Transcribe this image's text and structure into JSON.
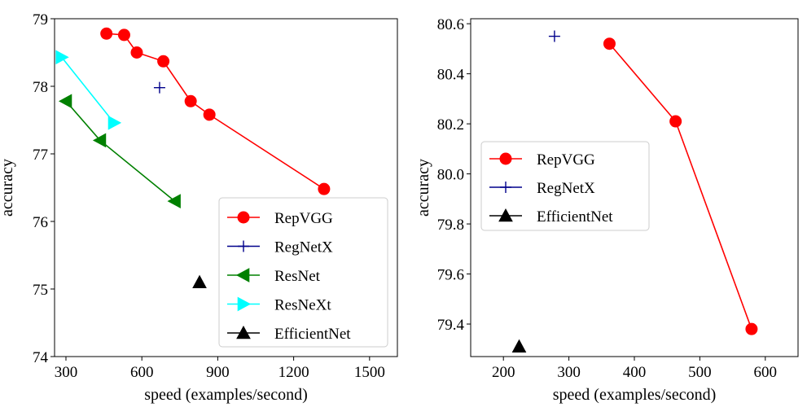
{
  "chart_data": [
    {
      "type": "line",
      "xlabel": "speed (examples/second)",
      "ylabel": "accuracy",
      "xlim": [
        255,
        1610
      ],
      "ylim": [
        74,
        79
      ],
      "xticks": [
        300,
        600,
        900,
        1200,
        1500
      ],
      "yticks": [
        74,
        75,
        76,
        77,
        78,
        79
      ],
      "legend_position": "lower-right",
      "series": [
        {
          "name": "RepVGG",
          "color": "#ff0000",
          "marker": "circle",
          "line": true,
          "x": [
            460,
            530,
            580,
            685,
            793,
            867,
            1320
          ],
          "y": [
            78.78,
            78.76,
            78.5,
            78.37,
            77.78,
            77.58,
            76.48
          ]
        },
        {
          "name": "RegNetX",
          "color": "#00008b",
          "marker": "plus",
          "line": true,
          "x": [
            670
          ],
          "y": [
            77.98
          ]
        },
        {
          "name": "ResNet",
          "color": "#008000",
          "marker": "triangle-left",
          "line": true,
          "x": [
            300,
            435,
            730
          ],
          "y": [
            77.78,
            77.2,
            76.3
          ]
        },
        {
          "name": "ResNeXt",
          "color": "#00ffff",
          "marker": "triangle-right",
          "line": true,
          "x": [
            283,
            490
          ],
          "y": [
            78.43,
            77.46
          ]
        },
        {
          "name": "EfficientNet",
          "color": "#000000",
          "marker": "triangle-up",
          "line": true,
          "x": [
            828
          ],
          "y": [
            75.1
          ]
        }
      ]
    },
    {
      "type": "line",
      "xlabel": "speed (examples/second)",
      "ylabel": "accuracy",
      "xlim": [
        150,
        650
      ],
      "ylim": [
        79.27,
        80.62
      ],
      "xticks": [
        200,
        300,
        400,
        500,
        600
      ],
      "yticks": [
        79.4,
        79.6,
        79.8,
        80.0,
        80.2,
        80.4,
        80.6
      ],
      "legend_position": "upper-left",
      "series": [
        {
          "name": "RepVGG",
          "color": "#ff0000",
          "marker": "circle",
          "line": true,
          "x": [
            362,
            463,
            579
          ],
          "y": [
            80.52,
            80.21,
            79.38
          ]
        },
        {
          "name": "RegNetX",
          "color": "#00008b",
          "marker": "plus",
          "line": true,
          "x": [
            278
          ],
          "y": [
            80.55
          ]
        },
        {
          "name": "EfficientNet",
          "color": "#000000",
          "marker": "triangle-up",
          "line": true,
          "x": [
            224
          ],
          "y": [
            79.31
          ]
        }
      ]
    }
  ]
}
